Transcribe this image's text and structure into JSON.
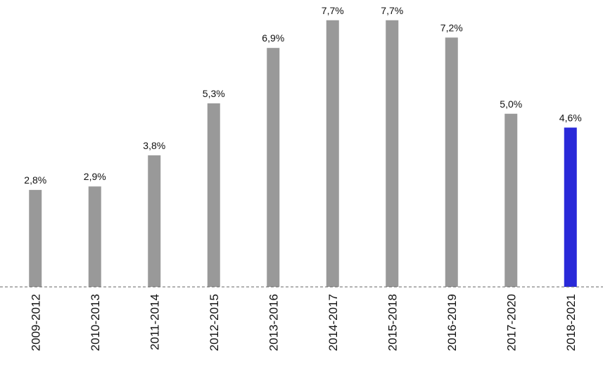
{
  "chart_data": {
    "type": "bar",
    "categories": [
      "2009-2012",
      "2010-2013",
      "2011-2014",
      "2012-2015",
      "2013-2016",
      "2014-2017",
      "2015-2018",
      "2016-2019",
      "2017-2020",
      "2018-2021"
    ],
    "values": [
      2.8,
      2.9,
      3.8,
      5.3,
      6.9,
      7.7,
      7.7,
      7.2,
      5.0,
      4.6
    ],
    "value_labels": [
      "2,8%",
      "2,9%",
      "3,8%",
      "5,3%",
      "6,9%",
      "7,7%",
      "7,7%",
      "7,2%",
      "5,0%",
      "4,6%"
    ],
    "colors": [
      "#999999",
      "#999999",
      "#999999",
      "#999999",
      "#999999",
      "#999999",
      "#999999",
      "#999999",
      "#999999",
      "#2929d9"
    ],
    "ylim": [
      0,
      8
    ]
  }
}
